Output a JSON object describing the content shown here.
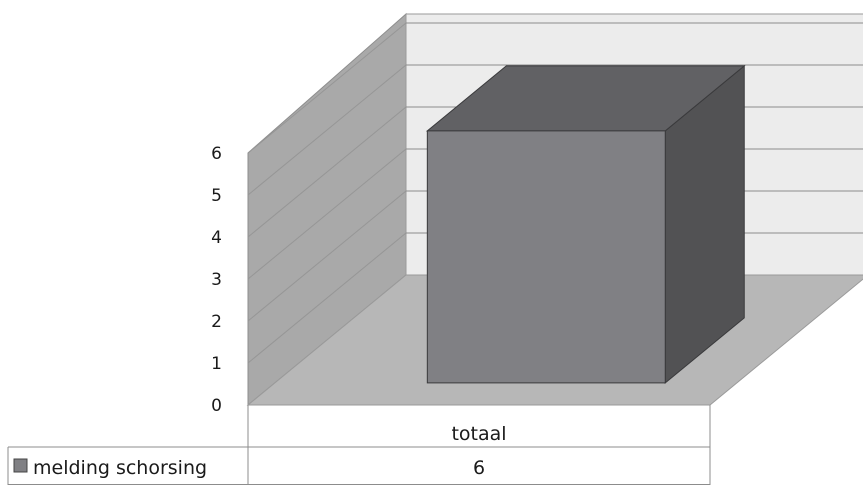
{
  "chart_data": {
    "type": "bar",
    "style": "3d-column",
    "categories": [
      "totaal"
    ],
    "series": [
      {
        "name": "melding schorsing",
        "values": [
          6
        ],
        "color": "#808084"
      }
    ],
    "ylim": [
      0,
      6
    ],
    "yticks": [
      0,
      1,
      2,
      3,
      4,
      5,
      6
    ],
    "grid": true,
    "legend": "data-table"
  }
}
